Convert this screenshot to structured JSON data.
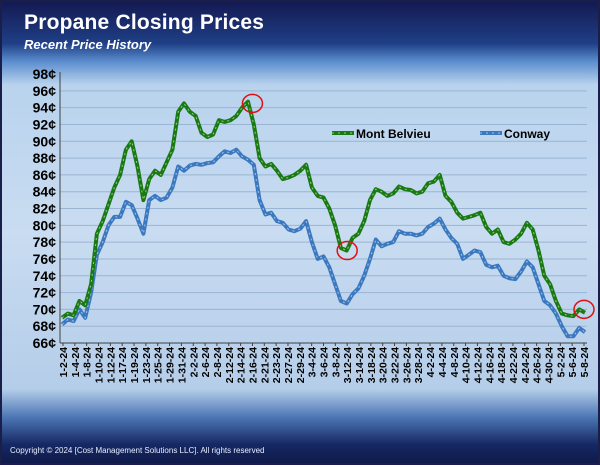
{
  "header": {
    "title": "Propane Closing Prices",
    "subtitle": "Recent Price History"
  },
  "footer": {
    "copyright": "Copyright  © 2024  [Cost Management  Solutions LLC].   All rights  reserved"
  },
  "colors": {
    "mont_belvieu": "#1a7a12",
    "conway": "#3a78c0",
    "highlight_circle": "#e01010",
    "gridline": "#9ab4d4"
  },
  "chart_data": {
    "type": "line",
    "title": "Propane Closing Prices",
    "subtitle": "Recent Price History",
    "ylim": [
      66,
      98
    ],
    "y_ticks": [
      "66¢",
      "68¢",
      "70¢",
      "72¢",
      "74¢",
      "76¢",
      "78¢",
      "80¢",
      "82¢",
      "84¢",
      "86¢",
      "88¢",
      "90¢",
      "92¢",
      "94¢",
      "96¢",
      "98¢"
    ],
    "x_tick_labels": [
      "1-2-24",
      "1-4-24",
      "1-8-24",
      "1-10-24",
      "1-12-24",
      "1-17-24",
      "1-19-24",
      "1-23-24",
      "1-25-24",
      "1-29-24",
      "1-31-24",
      "2-2-24",
      "2-6-24",
      "2-8-24",
      "2-12-24",
      "2-14-24",
      "2-16-24",
      "2-21-24",
      "2-23-24",
      "2-27-24",
      "2-29-24",
      "3-4-24",
      "3-6-24",
      "3-8-24",
      "3-12-24",
      "3-14-24",
      "3-18-24",
      "3-20-24",
      "3-22-24",
      "3-26-24",
      "3-28-24",
      "4-2-24",
      "4-4-24",
      "4-8-24",
      "4-10-24",
      "4-12-24",
      "4-16-24",
      "4-18-24",
      "4-22-24",
      "4-24-24",
      "4-26-24",
      "4-30-24",
      "5-2-24",
      "5-6-24",
      "5-8-24"
    ],
    "legend_position": "top-right",
    "grid": true,
    "highlighted_points": [
      {
        "series": "Mont Belvieu",
        "date": "2-16-24",
        "value": 94.5
      },
      {
        "series": "Mont Belvieu",
        "date": "3-12-24",
        "value": 77
      },
      {
        "series": "Mont Belvieu",
        "date": "5-8-24",
        "value": 70
      }
    ],
    "series": [
      {
        "name": "Mont Belvieu",
        "values": [
          69.0,
          69.5,
          69.3,
          71.0,
          70.5,
          73.0,
          79.0,
          80.5,
          82.5,
          84.5,
          86.0,
          89.0,
          90.0,
          87.0,
          83.0,
          85.5,
          86.5,
          86.0,
          87.5,
          89.0,
          93.5,
          94.5,
          93.5,
          93.0,
          91.0,
          90.5,
          90.8,
          92.5,
          92.3,
          92.5,
          93.0,
          94.0,
          94.7,
          92.0,
          88.0,
          87.0,
          87.3,
          86.5,
          85.5,
          85.7,
          86.0,
          86.5,
          87.2,
          84.5,
          83.5,
          83.3,
          82.0,
          80.0,
          77.3,
          77.0,
          78.5,
          79.0,
          80.5,
          83.0,
          84.3,
          84.0,
          83.5,
          83.8,
          84.6,
          84.3,
          84.2,
          83.8,
          84.0,
          85.0,
          85.2,
          86.0,
          83.5,
          82.8,
          81.5,
          80.8,
          81.0,
          81.2,
          81.5,
          79.8,
          79.0,
          79.5,
          78.0,
          77.8,
          78.3,
          79.0,
          80.3,
          79.5,
          77.0,
          74.0,
          73.0,
          71.0,
          69.5,
          69.3,
          69.2,
          70.0,
          69.6
        ]
      },
      {
        "name": "Conway",
        "values": [
          68.2,
          68.8,
          68.6,
          70.0,
          69.0,
          72.0,
          76.5,
          78.0,
          80.0,
          81.0,
          81.0,
          82.8,
          82.4,
          80.8,
          79.0,
          83.0,
          83.5,
          83.0,
          83.3,
          84.5,
          87.0,
          86.5,
          87.1,
          87.3,
          87.2,
          87.4,
          87.5,
          88.2,
          88.8,
          88.6,
          89.0,
          88.2,
          87.8,
          87.2,
          83.0,
          81.3,
          81.5,
          80.5,
          80.3,
          79.5,
          79.3,
          79.6,
          80.5,
          78.0,
          76.0,
          76.3,
          75.0,
          73.0,
          71.0,
          70.7,
          71.8,
          72.5,
          74.0,
          76.0,
          78.3,
          77.5,
          77.8,
          78.0,
          79.3,
          79.0,
          79.0,
          78.8,
          79.0,
          79.8,
          80.2,
          80.8,
          79.5,
          78.5,
          77.8,
          76.0,
          76.5,
          77.0,
          76.8,
          75.3,
          75.0,
          75.2,
          74.0,
          73.7,
          73.6,
          74.5,
          75.7,
          75.0,
          73.0,
          71.0,
          70.5,
          69.5,
          68.0,
          66.8,
          66.8,
          67.8,
          67.3
        ]
      }
    ]
  }
}
